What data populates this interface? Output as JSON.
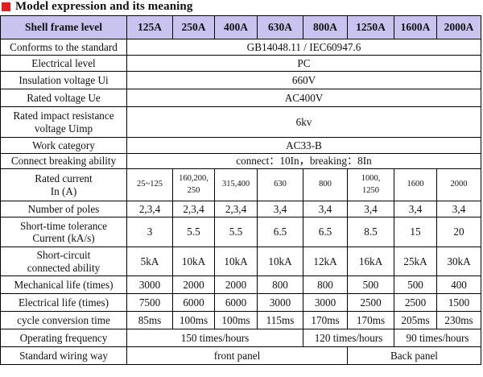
{
  "title": "Model expression and its meaning",
  "header": {
    "label": "Shell frame level",
    "columns": [
      "125A",
      "250A",
      "400A",
      "630A",
      "800A",
      "1250A",
      "1600A",
      "2000A"
    ]
  },
  "rows": {
    "standard": {
      "label": "Conforms to the standard",
      "value": "GB14048.11 / IEC60947.6"
    },
    "electrical_level": {
      "label": "Electrical level",
      "value": "PC"
    },
    "insulation": {
      "label": "Insulation voltage   Ui",
      "value": "660V"
    },
    "rated_voltage": {
      "label": "Rated voltage   Ue",
      "value": "AC400V"
    },
    "impulse": {
      "label_line1": "Rated impact resistance",
      "label_line2": "voltage   Uimp",
      "value": "6kv"
    },
    "work_category": {
      "label": "Work category",
      "value": "AC33-B"
    },
    "breaking": {
      "label": "Connect breaking ability",
      "value": "connect：10In，breaking：8In"
    },
    "rated_current": {
      "label_line1": "Rated current",
      "label_line2": "In   (A)",
      "values": [
        "25~125",
        "160,200,\n250",
        "315,400",
        "630",
        "800",
        "1000,\n1250",
        "1600",
        "2000"
      ]
    },
    "poles": {
      "label": "Number of poles",
      "values": [
        "2,3,4",
        "2,3,4",
        "2,3,4",
        "3,4",
        "3,4",
        "3,4",
        "3,4",
        "3,4"
      ]
    },
    "short_time": {
      "label_line1": "Short-time tolerance",
      "label_line2": "Current   (kA/s)",
      "values": [
        "3",
        "5.5",
        "5.5",
        "6.5",
        "6.5",
        "8.5",
        "15",
        "20"
      ]
    },
    "short_circuit": {
      "label_line1": "Short-circuit",
      "label_line2": "connected ability",
      "values": [
        "5kA",
        "10kA",
        "10kA",
        "10kA",
        "12kA",
        "16kA",
        "25kA",
        "30kA"
      ]
    },
    "mechanical": {
      "label": "Mechanical life (times)",
      "values": [
        "3000",
        "2000",
        "2000",
        "800",
        "800",
        "500",
        "500",
        "400"
      ]
    },
    "electrical_life": {
      "label": "Electrical life (times)",
      "values": [
        "7500",
        "6000",
        "6000",
        "3000",
        "3000",
        "2500",
        "2500",
        "1500"
      ]
    },
    "conversion": {
      "label": "cycle conversion time",
      "values": [
        "85ms",
        "100ms",
        "100ms",
        "115ms",
        "170ms",
        "170ms",
        "205ms",
        "230ms"
      ]
    },
    "frequency": {
      "label": "Operating frequency",
      "values": [
        "150 times/hours",
        "120 times/hours",
        "90 times/hours"
      ]
    },
    "wiring": {
      "label": "Standard wiring way",
      "values": [
        "front panel",
        "Back panel"
      ]
    }
  }
}
